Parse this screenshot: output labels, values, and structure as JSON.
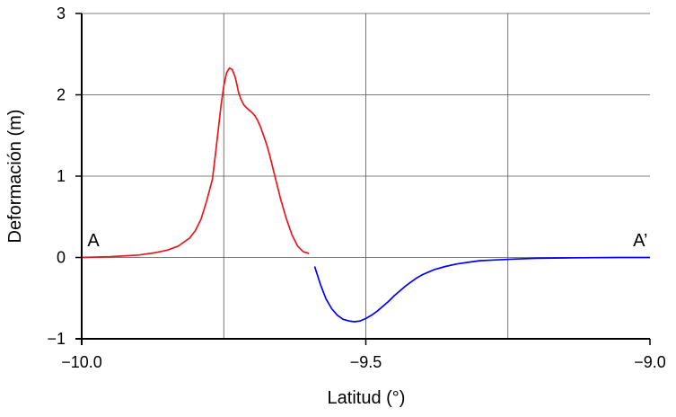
{
  "chart_data": {
    "type": "line",
    "title": "",
    "xlabel": "Latitud (°)",
    "ylabel": "Deformación (m)",
    "xlim": [
      -10.0,
      -9.0
    ],
    "ylim": [
      -1,
      3
    ],
    "x_ticks": [
      -10.0,
      -9.5,
      -9.0
    ],
    "x_tick_labels": [
      "−10.0",
      "−9.5",
      "−9.0"
    ],
    "x_grid": [
      -9.75,
      -9.5,
      -9.25
    ],
    "y_ticks": [
      -1,
      0,
      1,
      2,
      3
    ],
    "y_tick_labels": [
      "−1",
      "0",
      "1",
      "2",
      "3"
    ],
    "grid": true,
    "annotations": [
      {
        "text": "A",
        "x": -9.99,
        "y": 0.05,
        "anchor": "start"
      },
      {
        "text": "A’",
        "x": -9.004,
        "y": 0.05,
        "anchor": "end"
      }
    ],
    "series": [
      {
        "color": "#e41a1c",
        "x": [
          -10.0,
          -9.95,
          -9.9,
          -9.87,
          -9.85,
          -9.83,
          -9.82,
          -9.81,
          -9.8,
          -9.79,
          -9.78,
          -9.77,
          -9.765,
          -9.76,
          -9.755,
          -9.75,
          -9.745,
          -9.74,
          -9.735,
          -9.73,
          -9.727,
          -9.724,
          -9.72,
          -9.715,
          -9.71,
          -9.705,
          -9.7,
          -9.695,
          -9.69,
          -9.685,
          -9.68,
          -9.675,
          -9.67,
          -9.66,
          -9.65,
          -9.64,
          -9.63,
          -9.62,
          -9.61,
          -9.6
        ],
        "y": [
          0.0,
          0.01,
          0.03,
          0.06,
          0.09,
          0.14,
          0.19,
          0.24,
          0.33,
          0.47,
          0.7,
          0.96,
          1.25,
          1.55,
          1.86,
          2.11,
          2.27,
          2.33,
          2.31,
          2.22,
          2.13,
          2.03,
          1.95,
          1.88,
          1.84,
          1.81,
          1.78,
          1.74,
          1.68,
          1.6,
          1.5,
          1.4,
          1.28,
          1.0,
          0.72,
          0.48,
          0.28,
          0.14,
          0.07,
          0.05
        ]
      },
      {
        "color": "#0000ff",
        "x": [
          -9.59,
          -9.58,
          -9.57,
          -9.56,
          -9.55,
          -9.54,
          -9.53,
          -9.52,
          -9.51,
          -9.5,
          -9.49,
          -9.48,
          -9.47,
          -9.46,
          -9.45,
          -9.44,
          -9.43,
          -9.42,
          -9.41,
          -9.4,
          -9.39,
          -9.38,
          -9.36,
          -9.34,
          -9.32,
          -9.3,
          -9.27,
          -9.24,
          -9.2,
          -9.15,
          -9.1,
          -9.05,
          -9.0
        ],
        "y": [
          -0.11,
          -0.33,
          -0.51,
          -0.63,
          -0.71,
          -0.76,
          -0.78,
          -0.79,
          -0.78,
          -0.75,
          -0.71,
          -0.66,
          -0.6,
          -0.54,
          -0.47,
          -0.41,
          -0.35,
          -0.3,
          -0.25,
          -0.21,
          -0.18,
          -0.15,
          -0.11,
          -0.08,
          -0.06,
          -0.04,
          -0.03,
          -0.02,
          -0.01,
          -0.005,
          -0.002,
          0.0,
          0.0
        ]
      }
    ]
  }
}
